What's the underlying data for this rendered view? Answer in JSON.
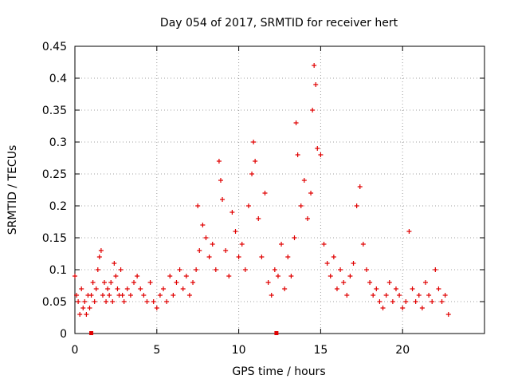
{
  "chart_data": {
    "type": "scatter",
    "title": "Day 054 of 2017, SRMTID for receiver hert",
    "xlabel": "GPS time / hours",
    "ylabel": "SRMTID / TECUs",
    "xlim": [
      0,
      25
    ],
    "ylim": [
      0,
      0.45
    ],
    "x_ticks": [
      0,
      5,
      10,
      15,
      20
    ],
    "x_tick_labels": [
      "0",
      "5",
      "10",
      "15",
      "20"
    ],
    "y_ticks": [
      0,
      0.05,
      0.1,
      0.15,
      0.2,
      0.25,
      0.3,
      0.35,
      0.4,
      0.45
    ],
    "y_tick_labels": [
      "0",
      "0.05",
      "0.1",
      "0.15",
      "0.2",
      "0.25",
      "0.3",
      "0.35",
      "0.4",
      "0.45"
    ],
    "grid": true,
    "marker": "+",
    "color": "#e00000",
    "bottom_markers_x": [
      1.0,
      12.3
    ],
    "points": [
      [
        0.0,
        0.09
      ],
      [
        0.1,
        0.06
      ],
      [
        0.2,
        0.05
      ],
      [
        0.3,
        0.03
      ],
      [
        0.4,
        0.07
      ],
      [
        0.5,
        0.04
      ],
      [
        0.6,
        0.05
      ],
      [
        0.7,
        0.03
      ],
      [
        0.8,
        0.06
      ],
      [
        0.9,
        0.04
      ],
      [
        1.0,
        0.06
      ],
      [
        1.1,
        0.08
      ],
      [
        1.2,
        0.05
      ],
      [
        1.3,
        0.07
      ],
      [
        1.4,
        0.1
      ],
      [
        1.5,
        0.12
      ],
      [
        1.6,
        0.13
      ],
      [
        1.7,
        0.06
      ],
      [
        1.8,
        0.08
      ],
      [
        1.9,
        0.05
      ],
      [
        2.0,
        0.07
      ],
      [
        2.1,
        0.06
      ],
      [
        2.2,
        0.08
      ],
      [
        2.3,
        0.05
      ],
      [
        2.4,
        0.11
      ],
      [
        2.5,
        0.09
      ],
      [
        2.6,
        0.07
      ],
      [
        2.7,
        0.06
      ],
      [
        2.8,
        0.1
      ],
      [
        2.9,
        0.06
      ],
      [
        3.0,
        0.05
      ],
      [
        3.2,
        0.07
      ],
      [
        3.4,
        0.06
      ],
      [
        3.6,
        0.08
      ],
      [
        3.8,
        0.09
      ],
      [
        4.0,
        0.07
      ],
      [
        4.2,
        0.06
      ],
      [
        4.4,
        0.05
      ],
      [
        4.6,
        0.08
      ],
      [
        4.8,
        0.05
      ],
      [
        5.0,
        0.04
      ],
      [
        5.2,
        0.06
      ],
      [
        5.4,
        0.07
      ],
      [
        5.6,
        0.05
      ],
      [
        5.8,
        0.09
      ],
      [
        6.0,
        0.06
      ],
      [
        6.2,
        0.08
      ],
      [
        6.4,
        0.1
      ],
      [
        6.6,
        0.07
      ],
      [
        6.8,
        0.09
      ],
      [
        7.0,
        0.06
      ],
      [
        7.2,
        0.08
      ],
      [
        7.4,
        0.1
      ],
      [
        7.5,
        0.2
      ],
      [
        7.6,
        0.13
      ],
      [
        7.8,
        0.17
      ],
      [
        8.0,
        0.15
      ],
      [
        8.2,
        0.12
      ],
      [
        8.4,
        0.14
      ],
      [
        8.6,
        0.1
      ],
      [
        8.8,
        0.27
      ],
      [
        8.9,
        0.24
      ],
      [
        9.0,
        0.21
      ],
      [
        9.2,
        0.13
      ],
      [
        9.4,
        0.09
      ],
      [
        9.6,
        0.19
      ],
      [
        9.8,
        0.16
      ],
      [
        10.0,
        0.12
      ],
      [
        10.2,
        0.14
      ],
      [
        10.4,
        0.1
      ],
      [
        10.6,
        0.2
      ],
      [
        10.8,
        0.25
      ],
      [
        10.9,
        0.3
      ],
      [
        11.0,
        0.27
      ],
      [
        11.2,
        0.18
      ],
      [
        11.4,
        0.12
      ],
      [
        11.6,
        0.22
      ],
      [
        11.8,
        0.08
      ],
      [
        12.0,
        0.06
      ],
      [
        12.2,
        0.1
      ],
      [
        12.4,
        0.09
      ],
      [
        12.6,
        0.14
      ],
      [
        12.8,
        0.07
      ],
      [
        13.0,
        0.12
      ],
      [
        13.2,
        0.09
      ],
      [
        13.4,
        0.15
      ],
      [
        13.5,
        0.33
      ],
      [
        13.6,
        0.28
      ],
      [
        13.8,
        0.2
      ],
      [
        14.0,
        0.24
      ],
      [
        14.2,
        0.18
      ],
      [
        14.4,
        0.22
      ],
      [
        14.5,
        0.35
      ],
      [
        14.6,
        0.42
      ],
      [
        14.7,
        0.39
      ],
      [
        14.8,
        0.29
      ],
      [
        15.0,
        0.28
      ],
      [
        15.2,
        0.14
      ],
      [
        15.4,
        0.11
      ],
      [
        15.6,
        0.09
      ],
      [
        15.8,
        0.12
      ],
      [
        16.0,
        0.07
      ],
      [
        16.2,
        0.1
      ],
      [
        16.4,
        0.08
      ],
      [
        16.6,
        0.06
      ],
      [
        16.8,
        0.09
      ],
      [
        17.0,
        0.11
      ],
      [
        17.2,
        0.2
      ],
      [
        17.4,
        0.23
      ],
      [
        17.6,
        0.14
      ],
      [
        17.8,
        0.1
      ],
      [
        18.0,
        0.08
      ],
      [
        18.2,
        0.06
      ],
      [
        18.4,
        0.07
      ],
      [
        18.6,
        0.05
      ],
      [
        18.8,
        0.04
      ],
      [
        19.0,
        0.06
      ],
      [
        19.2,
        0.08
      ],
      [
        19.4,
        0.05
      ],
      [
        19.6,
        0.07
      ],
      [
        19.8,
        0.06
      ],
      [
        20.0,
        0.04
      ],
      [
        20.2,
        0.05
      ],
      [
        20.4,
        0.16
      ],
      [
        20.6,
        0.07
      ],
      [
        20.8,
        0.05
      ],
      [
        21.0,
        0.06
      ],
      [
        21.2,
        0.04
      ],
      [
        21.4,
        0.08
      ],
      [
        21.6,
        0.06
      ],
      [
        21.8,
        0.05
      ],
      [
        22.0,
        0.1
      ],
      [
        22.2,
        0.07
      ],
      [
        22.4,
        0.05
      ],
      [
        22.6,
        0.06
      ],
      [
        22.8,
        0.03
      ]
    ]
  }
}
